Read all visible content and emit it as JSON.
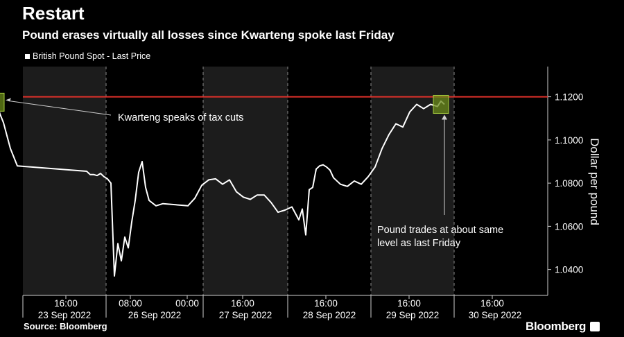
{
  "header": {
    "title": "Restart",
    "subtitle": "Pound erases virtually all losses since Kwarteng spoke last Friday"
  },
  "footer": {
    "source": "Source: Bloomberg",
    "brand": "Bloomberg",
    "brand_icon": "bloomberg-terminal-icon"
  },
  "colors": {
    "background": "#000000",
    "band_shade": "#1c1c1c",
    "line": "#ffffff",
    "reference_line": "#e0302a",
    "highlight_fill": "#6a8a1a",
    "highlight_stroke": "#a8d040",
    "axis_text": "#ffffff",
    "grid_dash": "#8a8a8a"
  },
  "chart_data": {
    "type": "line",
    "title": "Restart",
    "subtitle": "Pound erases virtually all losses since Kwarteng spoke last Friday",
    "xlabel": "",
    "ylabel": "Dollar per pound",
    "ylim": [
      1.028,
      1.134
    ],
    "y_ticks": [
      {
        "value": 1.04,
        "label": "1.0400"
      },
      {
        "value": 1.06,
        "label": "1.0600"
      },
      {
        "value": 1.08,
        "label": "1.0800"
      },
      {
        "value": 1.1,
        "label": "1.1000"
      },
      {
        "value": 1.12,
        "label": "1.1200"
      }
    ],
    "grid": true,
    "legend": {
      "position": "top-left",
      "entries": [
        "British Pound Spot - Last Price"
      ]
    },
    "x_time_ticks": [
      "16:00",
      "08:00",
      "00:00",
      "16:00",
      "16:00",
      "16:00",
      "16:00"
    ],
    "x_day_labels": [
      "23 Sep 2022",
      "26 Sep 2022",
      "27 Sep 2022",
      "28 Sep 2022",
      "29 Sep 2022",
      "30 Sep 2022"
    ],
    "reference_line": {
      "value": 1.12
    },
    "series": [
      {
        "name": "British Pound Spot - Last Price",
        "x": [
          "23 Sep 09:00",
          "23 Sep 10:00",
          "23 Sep 11:00",
          "23 Sep 12:00",
          "23 Sep 13:00",
          "23 Sep 14:00",
          "23 Sep 15:00",
          "23 Sep 15:30",
          "23 Sep 16:00",
          "23 Sep 17:00",
          "23 Sep 18:00",
          "23 Sep 19:00",
          "23 Sep 20:00",
          "23 Sep 21:00",
          "23 Sep 22:00",
          "26 Sep 00:00",
          "26 Sep 01:00",
          "26 Sep 02:00",
          "26 Sep 03:00",
          "26 Sep 04:00",
          "26 Sep 05:00",
          "26 Sep 06:00",
          "26 Sep 07:00",
          "26 Sep 08:00",
          "26 Sep 09:00",
          "26 Sep 10:00",
          "26 Sep 11:00",
          "26 Sep 12:00",
          "26 Sep 13:00",
          "26 Sep 14:00",
          "26 Sep 15:00",
          "26 Sep 16:00",
          "26 Sep 17:00",
          "26 Sep 18:00",
          "26 Sep 20:00",
          "26 Sep 22:00",
          "27 Sep 00:00",
          "27 Sep 02:00",
          "27 Sep 04:00",
          "27 Sep 06:00",
          "27 Sep 08:00",
          "27 Sep 10:00",
          "27 Sep 12:00",
          "27 Sep 14:00",
          "27 Sep 16:00",
          "27 Sep 18:00",
          "27 Sep 20:00",
          "27 Sep 22:00",
          "28 Sep 00:00",
          "28 Sep 02:00",
          "28 Sep 04:00",
          "28 Sep 06:00",
          "28 Sep 08:00",
          "28 Sep 09:00",
          "28 Sep 10:00",
          "28 Sep 11:00",
          "28 Sep 12:00",
          "28 Sep 13:00",
          "28 Sep 14:00",
          "28 Sep 15:00",
          "28 Sep 16:00",
          "28 Sep 17:00",
          "28 Sep 18:00",
          "28 Sep 20:00",
          "28 Sep 22:00",
          "29 Sep 00:00",
          "29 Sep 02:00",
          "29 Sep 04:00",
          "29 Sep 06:00",
          "29 Sep 08:00",
          "29 Sep 10:00",
          "29 Sep 12:00",
          "29 Sep 14:00",
          "29 Sep 16:00",
          "29 Sep 18:00",
          "29 Sep 20:00",
          "29 Sep 22:00",
          "30 Sep 00:00",
          "30 Sep 01:00",
          "30 Sep 02:00"
        ],
        "y": [
          1.1265,
          1.1262,
          1.126,
          1.1248,
          1.1252,
          1.1235,
          1.123,
          1.119,
          1.1175,
          1.112,
          1.108,
          1.102,
          1.096,
          1.092,
          1.088,
          1.0855,
          1.084,
          1.084,
          1.0835,
          1.0845,
          1.083,
          1.082,
          1.08,
          1.037,
          1.052,
          1.044,
          1.055,
          1.05,
          1.062,
          1.072,
          1.085,
          1.09,
          1.078,
          1.072,
          1.0695,
          1.0705,
          1.0695,
          1.073,
          1.079,
          1.0815,
          1.082,
          1.0795,
          1.0815,
          1.076,
          1.0735,
          1.0725,
          1.0745,
          1.0745,
          1.071,
          1.0665,
          1.0675,
          1.069,
          1.063,
          1.068,
          1.056,
          1.077,
          1.078,
          1.0865,
          1.088,
          1.0885,
          1.0875,
          1.086,
          1.0825,
          1.0795,
          1.0785,
          1.081,
          1.0795,
          1.083,
          1.0875,
          1.096,
          1.1025,
          1.1075,
          1.106,
          1.113,
          1.1165,
          1.1145,
          1.1165,
          1.1155,
          1.118,
          1.1165
        ]
      }
    ],
    "annotations": [
      {
        "text": "Kwarteng speaks of tax cuts",
        "x": "23 Sep 16:00",
        "y": 1.1175
      },
      {
        "text": "Pound trades at about same level as last Friday",
        "x": "30 Sep 01:00",
        "y": 1.1165
      }
    ]
  }
}
